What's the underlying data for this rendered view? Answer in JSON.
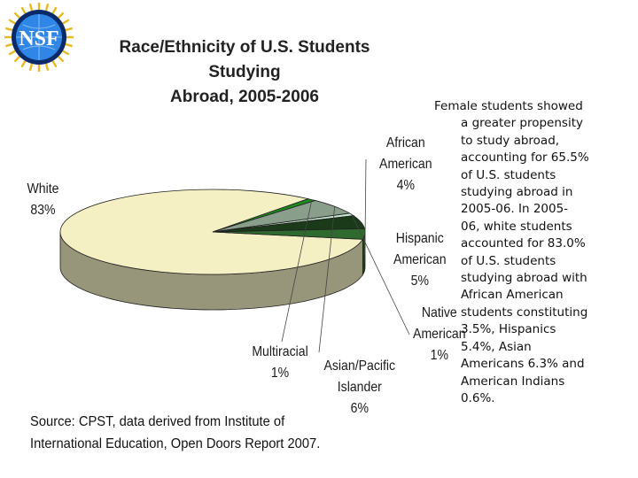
{
  "logo": {
    "text": "NSF",
    "colors": {
      "outer": "#0a2a6a",
      "inner": "#1e66c8",
      "globe": "#2f86e6"
    }
  },
  "chart_data": {
    "type": "pie",
    "title_lines": [
      "Race/Ethnicity of U.S. Students Studying",
      "Abroad, 2005-2006"
    ],
    "slices": [
      {
        "name": "White",
        "label_lines": [
          "White",
          "83%"
        ],
        "value": 83,
        "color": "#f4f0c4"
      },
      {
        "name": "Multiracial",
        "label_lines": [
          "Multiracial",
          "1%"
        ],
        "value": 1,
        "color": "#1e8a1e"
      },
      {
        "name": "Asian/Pacific Islander",
        "label_lines": [
          "Asian/Pacific",
          "Islander",
          "6%"
        ],
        "value": 6,
        "color": "#8a9e8c"
      },
      {
        "name": "Native American",
        "label_lines": [
          "Native",
          "American",
          "1%"
        ],
        "value": 1,
        "color": "#c8e8d0"
      },
      {
        "name": "Hispanic American",
        "label_lines": [
          "Hispanic",
          "American",
          "5%"
        ],
        "value": 5,
        "color": "#1a3a1a"
      },
      {
        "name": "African American",
        "label_lines": [
          "African",
          "American",
          "4%"
        ],
        "value": 4,
        "color": "#2f6a2f"
      }
    ]
  },
  "source_lines": [
    "Source: CPST, data derived from Institute of",
    "International Education, Open Doors Report 2007."
  ],
  "caption_lines": [
    "Female students showed",
    "a greater propensity",
    "to study abroad,",
    "accounting for 65.5%",
    "of U.S. students",
    "studying abroad in",
    "2005-06. In 2005-",
    "06, white students",
    "accounted for 83.0%",
    "of U.S. students",
    "studying abroad with",
    "African American",
    "students constituting",
    "3.5%, Hispanics",
    "5.4%, Asian",
    "Americans 6.3% and",
    "American Indians",
    "0.6%."
  ]
}
